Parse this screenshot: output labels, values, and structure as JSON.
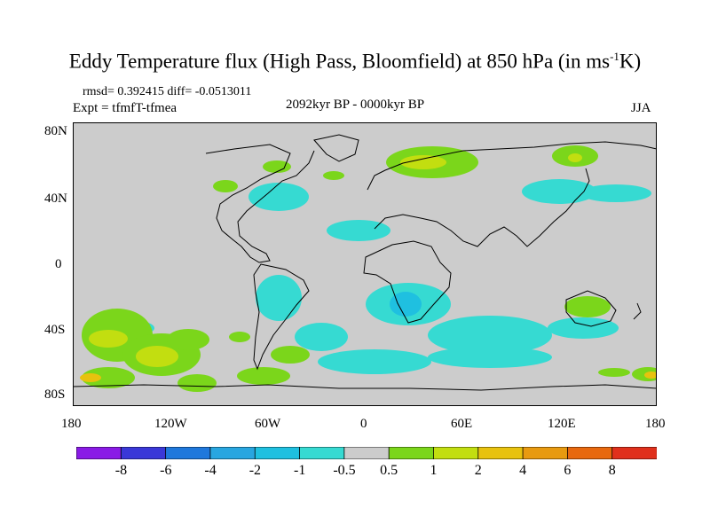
{
  "title": {
    "main": "Eddy Temperature flux (High Pass, Bloomfield) at 850 hPa (in ms",
    "sup": "-1",
    "tail": "K)"
  },
  "stats": "rmsd= 0.392415 diff= -0.0513011",
  "experiment": "Expt = tfmfT-tfmea",
  "period": "2092kyr BP - 0000kyr BP",
  "season": "JJA",
  "lat_labels": [
    "80N",
    "40N",
    "0",
    "40S",
    "80S"
  ],
  "lon_labels": [
    "180",
    "120W",
    "60W",
    "0",
    "60E",
    "120E",
    "180"
  ],
  "colorbar": {
    "labels": [
      "-8",
      "-6",
      "-4",
      "-2",
      "-1",
      "-0.5",
      "0.5",
      "1",
      "2",
      "4",
      "6",
      "8"
    ],
    "colors": [
      "#8a1be6",
      "#3a38d8",
      "#1f78dc",
      "#28a6e0",
      "#1fc0e0",
      "#36dad2",
      "#cccccc",
      "#7bd61b",
      "#c2de10",
      "#e8c20e",
      "#e89a10",
      "#e8680e",
      "#e0301c"
    ]
  },
  "palette": {
    "background": "#cccccc",
    "neg_light": "#36dad2",
    "neg_mid": "#1fc0e0",
    "pos_light": "#7bd61b",
    "pos_mid": "#c2de10",
    "pos_high": "#e8c20e",
    "coast": "#000000"
  }
}
